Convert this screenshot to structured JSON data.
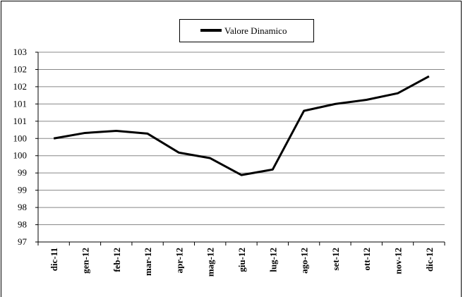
{
  "chart_data": {
    "type": "line",
    "categories": [
      "dic-11",
      "gen-12",
      "feb-12",
      "mar-12",
      "apr-12",
      "mag-12",
      "giu-12",
      "lug-12",
      "ago-12",
      "set-12",
      "ott-12",
      "nov-12",
      "dic-12"
    ],
    "series": [
      {
        "name": "Valore Dinamico",
        "color": "#000000",
        "values": [
          100.0,
          100.16,
          100.22,
          100.14,
          99.59,
          99.43,
          98.94,
          99.1,
          100.8,
          101.0,
          101.12,
          101.31,
          101.8
        ]
      }
    ],
    "ylim": [
      97,
      102.5
    ],
    "yticks": [
      {
        "value": 97,
        "label": "97"
      },
      {
        "value": 97.5,
        "label": "98"
      },
      {
        "value": 98,
        "label": "98"
      },
      {
        "value": 98.5,
        "label": "99"
      },
      {
        "value": 99,
        "label": "99"
      },
      {
        "value": 99.5,
        "label": "100"
      },
      {
        "value": 100,
        "label": "100"
      },
      {
        "value": 100.5,
        "label": "101"
      },
      {
        "value": 101,
        "label": "101"
      },
      {
        "value": 101.5,
        "label": "102"
      },
      {
        "value": 102,
        "label": "102"
      },
      {
        "value": 102.5,
        "label": "103"
      }
    ],
    "grid": true,
    "legend": "top"
  }
}
